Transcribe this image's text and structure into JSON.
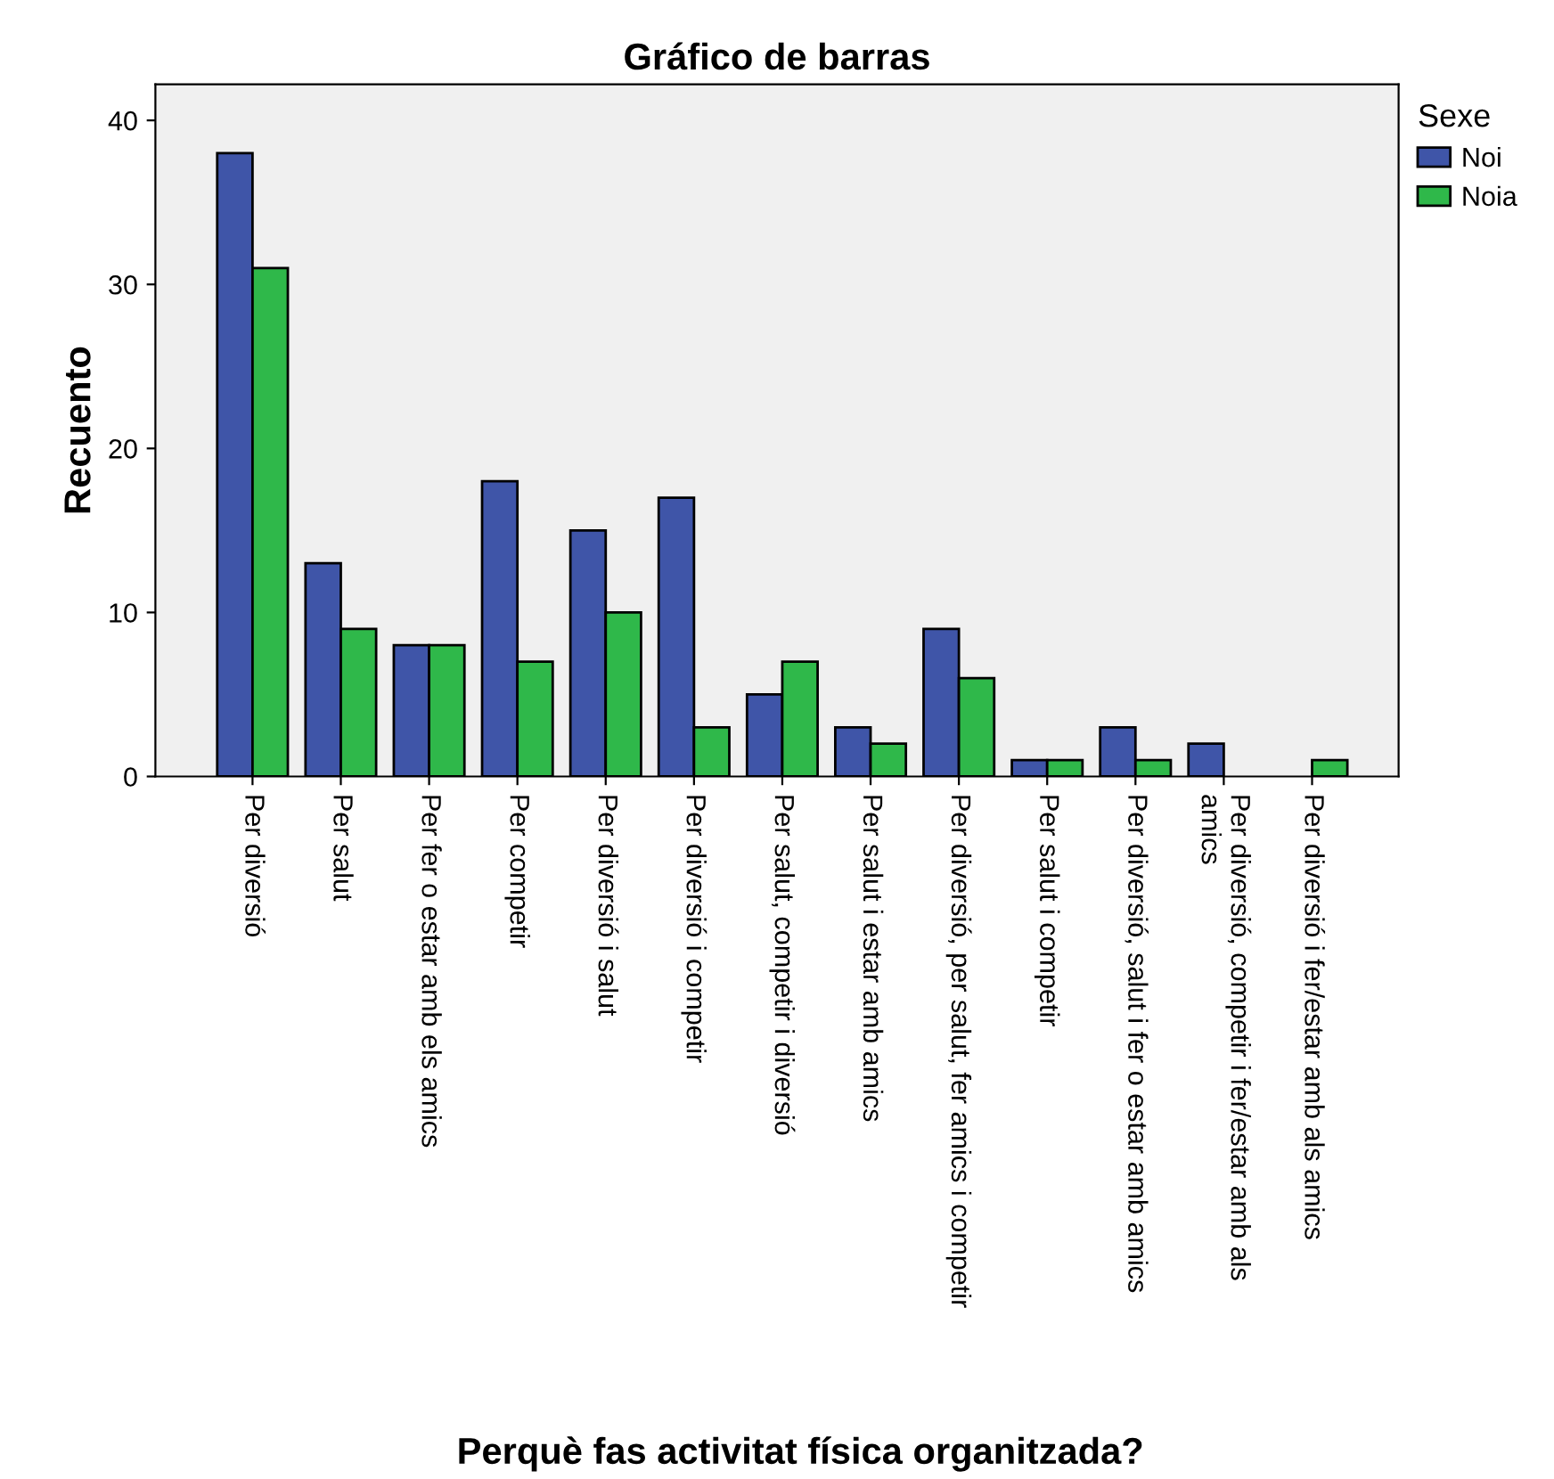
{
  "chart_data": {
    "type": "bar",
    "title": "Gráfico de barras",
    "xlabel": "Perquè fas activitat física organitzada?",
    "ylabel": "Recuento",
    "legend_title": "Sexe",
    "categories": [
      "Per diversió",
      "Per salut",
      "Per fer o estar amb els amics",
      "Per competir",
      "Per diversió i salut",
      "Per diversió i competir",
      "Per salut, competir i diversió",
      "Per salut i estar amb amics",
      "Per diversió, per salut, fer amics i competir",
      "Per salut i competir",
      "Per diversió, salut i fer o estar amb amics",
      "Per diversió, competir i fer/estar amb als\namics",
      "Per diversió i fer/estar amb als amics"
    ],
    "series": [
      {
        "name": "Noi",
        "color": "#3f55a8",
        "values": [
          38,
          13,
          8,
          18,
          15,
          17,
          5,
          3,
          9,
          1,
          3,
          2,
          null
        ]
      },
      {
        "name": "Noia",
        "color": "#2fb84a",
        "values": [
          31,
          9,
          8,
          7,
          10,
          3,
          7,
          2,
          6,
          1,
          1,
          null,
          1
        ]
      }
    ],
    "ylim": [
      0,
      42.2
    ],
    "yticks": [
      0,
      10,
      20,
      30,
      40
    ],
    "grid": false,
    "legend": "top right"
  }
}
